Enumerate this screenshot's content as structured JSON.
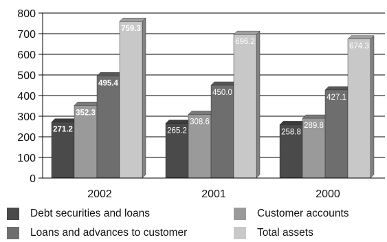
{
  "chart_data": {
    "type": "bar",
    "title": "",
    "xlabel": "",
    "ylabel": "",
    "categories": [
      "2002",
      "2001",
      "2000"
    ],
    "ylim": [
      0,
      800
    ],
    "yticks": [
      0,
      100,
      200,
      300,
      400,
      500,
      600,
      700,
      800
    ],
    "grid": true,
    "legend_position": "bottom",
    "data_labels": true,
    "style": "3d-bars",
    "series": [
      {
        "name": "Debt securities and loans",
        "values": [
          271.2,
          265.2,
          258.8
        ],
        "labels": [
          "271.2",
          "265.2",
          "258.8"
        ],
        "color": "#4a4a4a"
      },
      {
        "name": "Customer accounts",
        "values": [
          352.3,
          308.6,
          289.8
        ],
        "labels": [
          "352.3",
          "308.6",
          "289.8"
        ],
        "color": "#9a9a9a"
      },
      {
        "name": "Loans and advances to customer",
        "values": [
          495.4,
          450.0,
          427.1
        ],
        "labels": [
          "495.4",
          "450.0",
          "427.1"
        ],
        "color": "#6e6e6e"
      },
      {
        "name": "Total assets",
        "values": [
          759.3,
          696.2,
          674.3
        ],
        "labels": [
          "759.3",
          "696.2",
          "674.3"
        ],
        "color": "#c8c8c8"
      }
    ]
  }
}
